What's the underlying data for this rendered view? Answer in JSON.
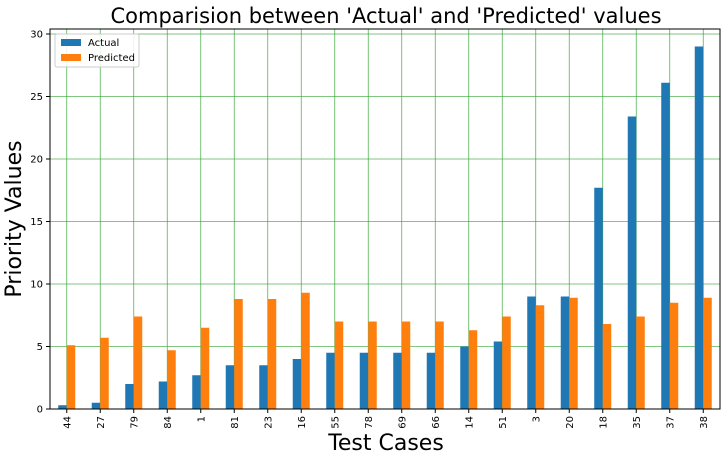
{
  "chart_data": {
    "type": "bar",
    "title": "Comparision between 'Actual' and 'Predicted' values",
    "xlabel": "Test Cases",
    "ylabel": "Priority Values",
    "ylim": [
      0,
      30.4
    ],
    "yticks": [
      0,
      5,
      10,
      15,
      20,
      25,
      30
    ],
    "grid": true,
    "legend_position": "top-left",
    "categories": [
      "44",
      "27",
      "79",
      "84",
      "1",
      "81",
      "23",
      "16",
      "55",
      "78",
      "69",
      "66",
      "14",
      "51",
      "3",
      "20",
      "18",
      "35",
      "37",
      "38"
    ],
    "series": [
      {
        "name": "Actual",
        "color": "#1f77b4",
        "values": [
          0.3,
          0.5,
          2.0,
          2.2,
          2.7,
          3.5,
          3.5,
          4.0,
          4.5,
          4.5,
          4.5,
          4.5,
          5.0,
          5.4,
          9.0,
          9.0,
          17.7,
          23.4,
          26.1,
          29.0
        ]
      },
      {
        "name": "Predicted",
        "color": "#ff7f0e",
        "values": [
          5.1,
          5.7,
          7.4,
          4.7,
          6.5,
          8.8,
          8.8,
          9.3,
          7.0,
          7.0,
          7.0,
          7.0,
          6.3,
          7.4,
          8.3,
          8.9,
          6.8,
          7.4,
          8.5,
          8.9
        ]
      }
    ],
    "grid_color": "#2ca02c"
  }
}
